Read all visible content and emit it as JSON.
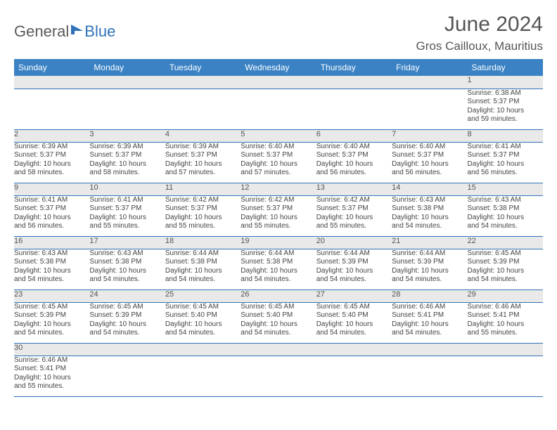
{
  "header": {
    "logo_general": "General",
    "logo_blue": "Blue",
    "month_title": "June 2024",
    "location": "Gros Cailloux, Mauritius"
  },
  "calendar": {
    "day_headers": [
      "Sunday",
      "Monday",
      "Tuesday",
      "Wednesday",
      "Thursday",
      "Friday",
      "Saturday"
    ],
    "header_bg": "#3b82c4",
    "header_fg": "#ffffff",
    "daynum_bg": "#e9e9e9",
    "row_border": "#2f72b7",
    "weeks": [
      {
        "nums": [
          "",
          "",
          "",
          "",
          "",
          "",
          "1"
        ],
        "cells": [
          [],
          [],
          [],
          [],
          [],
          [],
          [
            "Sunrise: 6:38 AM",
            "Sunset: 5:37 PM",
            "Daylight: 10 hours",
            "and 59 minutes."
          ]
        ]
      },
      {
        "nums": [
          "2",
          "3",
          "4",
          "5",
          "6",
          "7",
          "8"
        ],
        "cells": [
          [
            "Sunrise: 6:39 AM",
            "Sunset: 5:37 PM",
            "Daylight: 10 hours",
            "and 58 minutes."
          ],
          [
            "Sunrise: 6:39 AM",
            "Sunset: 5:37 PM",
            "Daylight: 10 hours",
            "and 58 minutes."
          ],
          [
            "Sunrise: 6:39 AM",
            "Sunset: 5:37 PM",
            "Daylight: 10 hours",
            "and 57 minutes."
          ],
          [
            "Sunrise: 6:40 AM",
            "Sunset: 5:37 PM",
            "Daylight: 10 hours",
            "and 57 minutes."
          ],
          [
            "Sunrise: 6:40 AM",
            "Sunset: 5:37 PM",
            "Daylight: 10 hours",
            "and 56 minutes."
          ],
          [
            "Sunrise: 6:40 AM",
            "Sunset: 5:37 PM",
            "Daylight: 10 hours",
            "and 56 minutes."
          ],
          [
            "Sunrise: 6:41 AM",
            "Sunset: 5:37 PM",
            "Daylight: 10 hours",
            "and 56 minutes."
          ]
        ]
      },
      {
        "nums": [
          "9",
          "10",
          "11",
          "12",
          "13",
          "14",
          "15"
        ],
        "cells": [
          [
            "Sunrise: 6:41 AM",
            "Sunset: 5:37 PM",
            "Daylight: 10 hours",
            "and 56 minutes."
          ],
          [
            "Sunrise: 6:41 AM",
            "Sunset: 5:37 PM",
            "Daylight: 10 hours",
            "and 55 minutes."
          ],
          [
            "Sunrise: 6:42 AM",
            "Sunset: 5:37 PM",
            "Daylight: 10 hours",
            "and 55 minutes."
          ],
          [
            "Sunrise: 6:42 AM",
            "Sunset: 5:37 PM",
            "Daylight: 10 hours",
            "and 55 minutes."
          ],
          [
            "Sunrise: 6:42 AM",
            "Sunset: 5:37 PM",
            "Daylight: 10 hours",
            "and 55 minutes."
          ],
          [
            "Sunrise: 6:43 AM",
            "Sunset: 5:38 PM",
            "Daylight: 10 hours",
            "and 54 minutes."
          ],
          [
            "Sunrise: 6:43 AM",
            "Sunset: 5:38 PM",
            "Daylight: 10 hours",
            "and 54 minutes."
          ]
        ]
      },
      {
        "nums": [
          "16",
          "17",
          "18",
          "19",
          "20",
          "21",
          "22"
        ],
        "cells": [
          [
            "Sunrise: 6:43 AM",
            "Sunset: 5:38 PM",
            "Daylight: 10 hours",
            "and 54 minutes."
          ],
          [
            "Sunrise: 6:43 AM",
            "Sunset: 5:38 PM",
            "Daylight: 10 hours",
            "and 54 minutes."
          ],
          [
            "Sunrise: 6:44 AM",
            "Sunset: 5:38 PM",
            "Daylight: 10 hours",
            "and 54 minutes."
          ],
          [
            "Sunrise: 6:44 AM",
            "Sunset: 5:38 PM",
            "Daylight: 10 hours",
            "and 54 minutes."
          ],
          [
            "Sunrise: 6:44 AM",
            "Sunset: 5:39 PM",
            "Daylight: 10 hours",
            "and 54 minutes."
          ],
          [
            "Sunrise: 6:44 AM",
            "Sunset: 5:39 PM",
            "Daylight: 10 hours",
            "and 54 minutes."
          ],
          [
            "Sunrise: 6:45 AM",
            "Sunset: 5:39 PM",
            "Daylight: 10 hours",
            "and 54 minutes."
          ]
        ]
      },
      {
        "nums": [
          "23",
          "24",
          "25",
          "26",
          "27",
          "28",
          "29"
        ],
        "cells": [
          [
            "Sunrise: 6:45 AM",
            "Sunset: 5:39 PM",
            "Daylight: 10 hours",
            "and 54 minutes."
          ],
          [
            "Sunrise: 6:45 AM",
            "Sunset: 5:39 PM",
            "Daylight: 10 hours",
            "and 54 minutes."
          ],
          [
            "Sunrise: 6:45 AM",
            "Sunset: 5:40 PM",
            "Daylight: 10 hours",
            "and 54 minutes."
          ],
          [
            "Sunrise: 6:45 AM",
            "Sunset: 5:40 PM",
            "Daylight: 10 hours",
            "and 54 minutes."
          ],
          [
            "Sunrise: 6:45 AM",
            "Sunset: 5:40 PM",
            "Daylight: 10 hours",
            "and 54 minutes."
          ],
          [
            "Sunrise: 6:46 AM",
            "Sunset: 5:41 PM",
            "Daylight: 10 hours",
            "and 54 minutes."
          ],
          [
            "Sunrise: 6:46 AM",
            "Sunset: 5:41 PM",
            "Daylight: 10 hours",
            "and 55 minutes."
          ]
        ]
      },
      {
        "nums": [
          "30",
          "",
          "",
          "",
          "",
          "",
          ""
        ],
        "cells": [
          [
            "Sunrise: 6:46 AM",
            "Sunset: 5:41 PM",
            "Daylight: 10 hours",
            "and 55 minutes."
          ],
          [],
          [],
          [],
          [],
          [],
          []
        ]
      }
    ]
  }
}
